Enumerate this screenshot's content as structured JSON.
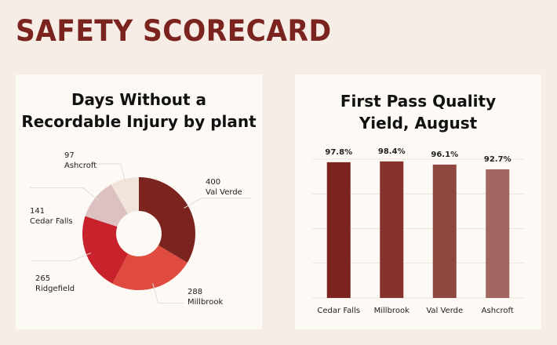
{
  "page": {
    "title": "SAFETY SCORECARD"
  },
  "chart_data": [
    {
      "type": "pie",
      "donut": true,
      "title": "Days Without a Recordable Injury by plant",
      "title_lines": [
        "Days Without a",
        "Recordable Injury by plant"
      ],
      "categories": [
        "Val Verde",
        "Millbrook",
        "Ridgefield",
        "Cedar Falls",
        "Ashcroft"
      ],
      "values": [
        400,
        288,
        265,
        141,
        97
      ],
      "colors": [
        "#7b231f",
        "#e04b3f",
        "#c8232d",
        "#dcc0c2",
        "#f1e5db"
      ]
    },
    {
      "type": "bar",
      "title": "First Pass Quality Yield, August",
      "title_lines": [
        "First Pass Quality",
        "Yield, August"
      ],
      "categories": [
        "Cedar Falls",
        "Millbrook",
        "Val Verde",
        "Ashcroft"
      ],
      "values": [
        97.8,
        98.4,
        96.1,
        92.7
      ],
      "value_labels": [
        "97.8%",
        "98.4%",
        "96.1%",
        "92.7%"
      ],
      "ylim": [
        0,
        100
      ],
      "grid": true,
      "colors": [
        "#7b231f",
        "#86322d",
        "#8f4840",
        "#a0665f"
      ]
    }
  ]
}
